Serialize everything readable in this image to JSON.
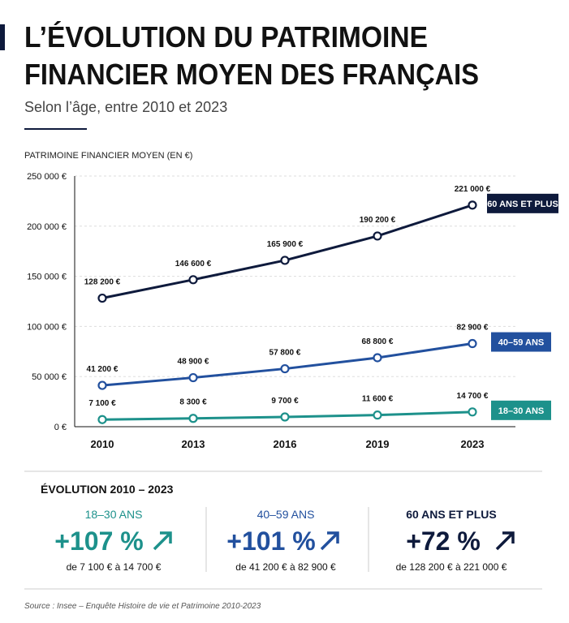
{
  "chart_data": {
    "type": "line",
    "title": [
      "L’ÉVOLUTION DU PATRIMOINE",
      "FINANCIER MOYEN DES FRANÇAIS"
    ],
    "subtitle": "Selon l’âge, entre 2010 et 2023",
    "y_label": "PATRIMOINE FINANCIER MOYEN (EN €)",
    "categories": [
      "2010",
      "2013",
      "2016",
      "2019",
      "2023"
    ],
    "ylim": [
      0,
      250000
    ],
    "yticks": [
      {
        "value": 0,
        "label": "0 €"
      },
      {
        "value": 50000,
        "label": "50 000 €"
      },
      {
        "value": 100000,
        "label": "100 000 €"
      },
      {
        "value": 150000,
        "label": "150 000 €"
      },
      {
        "value": 200000,
        "label": "200 000 €"
      },
      {
        "value": 250000,
        "label": "250 000 €"
      }
    ],
    "grid": true,
    "series": [
      {
        "name": "60 ANS ET PLUS",
        "color": "#0e1a3c",
        "values": [
          128200,
          146600,
          165900,
          190200,
          221000
        ],
        "value_labels": [
          "128 200 €",
          "146 600 €",
          "165 900 €",
          "190 200 €",
          "221 000 €"
        ]
      },
      {
        "name": "40–59 ANS",
        "color": "#22509e",
        "values": [
          41200,
          48900,
          57800,
          68800,
          82900
        ],
        "value_labels": [
          "41 200 €",
          "48 900 €",
          "57 800 €",
          "68 800 €",
          "82 900 €"
        ]
      },
      {
        "name": "18–30 ANS",
        "color": "#1d918b",
        "values": [
          7100,
          8300,
          9700,
          11600,
          14700
        ],
        "value_labels": [
          "7 100 €",
          "8 300 €",
          "9 700 €",
          "11 600 €",
          "14 700 €"
        ]
      }
    ]
  },
  "summary": {
    "title": "ÉVOLUTION 2010 – 2023",
    "items": [
      {
        "label": "18–30 ANS",
        "change": "+107 %",
        "detail": "de 7 100 € à 14 700 €"
      },
      {
        "label": "40–59 ANS",
        "change": "+101 %",
        "detail": "de 41 200 € à 82 900 €"
      },
      {
        "label": "60 ANS ET PLUS",
        "change": "+72 %",
        "detail": "de 128 200 € à 221 000 €"
      }
    ]
  },
  "source": "Source : Insee – Enquête Histoire de vie et Patrimoine 2010-2023"
}
